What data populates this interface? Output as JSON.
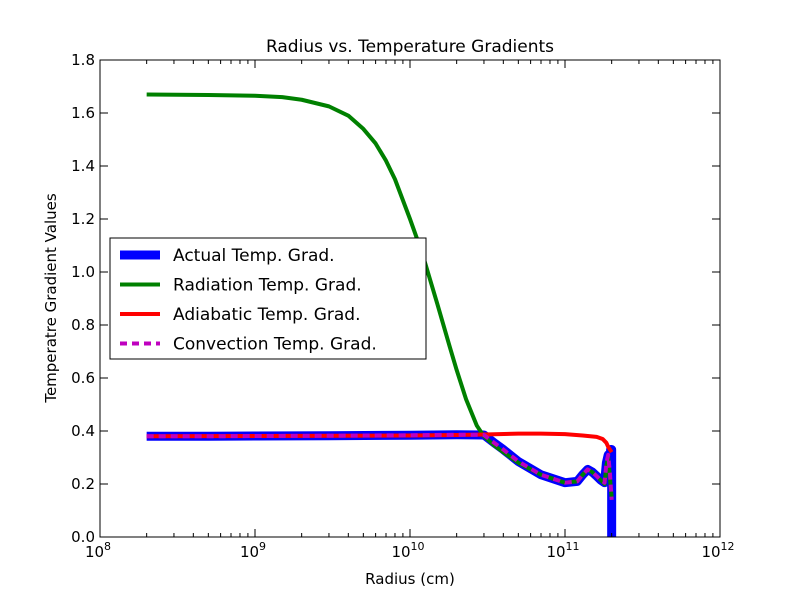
{
  "chart_data": {
    "type": "line",
    "title": "Radius vs. Temperature Gradients",
    "xlabel": "Radius (cm)",
    "ylabel": "Temperatre Gradient Values",
    "xscale": "log",
    "xlim": [
      100000000.0,
      1000000000000.0
    ],
    "ylim": [
      0,
      1.8
    ],
    "grid": false,
    "legend_position": "center-left",
    "x_ticks": [
      {
        "value": 100000000.0,
        "base": "10",
        "exp": "8"
      },
      {
        "value": 1000000000.0,
        "base": "10",
        "exp": "9"
      },
      {
        "value": 10000000000.0,
        "base": "10",
        "exp": "10"
      },
      {
        "value": 100000000000.0,
        "base": "10",
        "exp": "11"
      },
      {
        "value": 1000000000000.0,
        "base": "10",
        "exp": "12"
      }
    ],
    "y_ticks": [
      {
        "value": 0.0,
        "label": "0.0"
      },
      {
        "value": 0.2,
        "label": "0.2"
      },
      {
        "value": 0.4,
        "label": "0.4"
      },
      {
        "value": 0.6,
        "label": "0.6"
      },
      {
        "value": 0.8,
        "label": "0.8"
      },
      {
        "value": 1.0,
        "label": "1.0"
      },
      {
        "value": 1.2,
        "label": "1.2"
      },
      {
        "value": 1.4,
        "label": "1.4"
      },
      {
        "value": 1.6,
        "label": "1.6"
      },
      {
        "value": 1.8,
        "label": "1.8"
      }
    ],
    "series": [
      {
        "name": "Actual Temp. Grad.",
        "color": "#0000ff",
        "style": "solid-thick",
        "x": [
          200000000.0,
          500000000.0,
          1000000000.0,
          3000000000.0,
          10000000000.0,
          20000000000.0,
          30000000000.0,
          35000000000.0,
          40000000000.0,
          50000000000.0,
          70000000000.0,
          100000000000.0,
          120000000000.0,
          130000000000.0,
          140000000000.0,
          150000000000.0,
          160000000000.0,
          170000000000.0,
          180000000000.0,
          185000000000.0,
          190000000000.0,
          195000000000.0,
          197000000000.0,
          200000000000.0,
          200000000000.0,
          200000000000.0
        ],
        "y": [
          0.38,
          0.38,
          0.381,
          0.382,
          0.384,
          0.386,
          0.385,
          0.355,
          0.33,
          0.285,
          0.235,
          0.205,
          0.21,
          0.235,
          0.255,
          0.245,
          0.23,
          0.215,
          0.205,
          0.28,
          0.31,
          0.24,
          0.33,
          0.33,
          0.12,
          0.0
        ]
      },
      {
        "name": "Radiation Temp. Grad.",
        "color": "#008000",
        "style": "solid",
        "x": [
          200000000.0,
          500000000.0,
          1000000000.0,
          1500000000.0,
          2000000000.0,
          3000000000.0,
          4000000000.0,
          5000000000.0,
          6000000000.0,
          7000000000.0,
          8000000000.0,
          10000000000.0,
          12000000000.0,
          15000000000.0,
          18000000000.0,
          20000000000.0,
          23000000000.0,
          27000000000.0,
          30000000000.0,
          35000000000.0,
          40000000000.0,
          50000000000.0,
          70000000000.0,
          100000000000.0,
          120000000000.0,
          130000000000.0,
          140000000000.0,
          150000000000.0,
          160000000000.0,
          170000000000.0,
          180000000000.0,
          185000000000.0,
          190000000000.0,
          195000000000.0,
          200000000000.0
        ],
        "y": [
          1.67,
          1.668,
          1.665,
          1.66,
          1.65,
          1.625,
          1.59,
          1.54,
          1.485,
          1.42,
          1.35,
          1.2,
          1.07,
          0.88,
          0.72,
          0.63,
          0.52,
          0.42,
          0.38,
          0.345,
          0.32,
          0.28,
          0.235,
          0.205,
          0.21,
          0.235,
          0.255,
          0.245,
          0.23,
          0.215,
          0.2,
          0.27,
          0.3,
          0.22,
          0.15
        ]
      },
      {
        "name": "Adiabatic Temp. Grad.",
        "color": "#ff0000",
        "style": "solid",
        "x": [
          200000000.0,
          1000000000.0,
          10000000000.0,
          20000000000.0,
          30000000000.0,
          50000000000.0,
          70000000000.0,
          100000000000.0,
          130000000000.0,
          160000000000.0,
          175000000000.0,
          185000000000.0,
          190000000000.0,
          195000000000.0,
          200000000000.0
        ],
        "y": [
          0.38,
          0.381,
          0.383,
          0.385,
          0.387,
          0.39,
          0.39,
          0.388,
          0.383,
          0.378,
          0.37,
          0.355,
          0.34,
          0.33,
          0.32
        ]
      },
      {
        "name": "Convection Temp. Grad.",
        "color": "#bf00bf",
        "style": "dashed",
        "x": [
          200000000.0,
          500000000.0,
          1000000000.0,
          3000000000.0,
          10000000000.0,
          20000000000.0,
          30000000000.0,
          35000000000.0,
          40000000000.0,
          50000000000.0,
          70000000000.0,
          100000000000.0,
          120000000000.0,
          130000000000.0,
          140000000000.0,
          150000000000.0,
          160000000000.0,
          170000000000.0,
          180000000000.0,
          185000000000.0,
          190000000000.0,
          195000000000.0,
          200000000000.0
        ],
        "y": [
          0.38,
          0.38,
          0.381,
          0.382,
          0.384,
          0.386,
          0.385,
          0.355,
          0.33,
          0.285,
          0.235,
          0.205,
          0.21,
          0.235,
          0.255,
          0.245,
          0.23,
          0.215,
          0.205,
          0.28,
          0.31,
          0.24,
          0.14
        ]
      }
    ]
  }
}
